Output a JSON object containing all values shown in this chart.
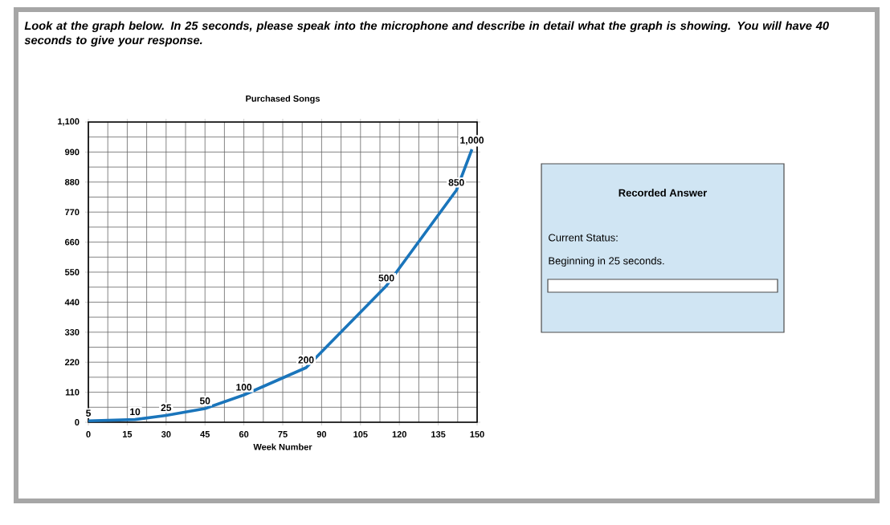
{
  "chart_data": [
    {
      "type": "line",
      "title": "Purchased Songs",
      "xlabel": "Week Number",
      "annotations": [
        "Look at the graph below. In 25 seconds, please speak into the microphone and describe in detail what the graph is showing. You will have 40 seconds to give your response."
      ],
      "x": [
        0,
        18,
        30,
        45,
        60,
        84,
        115,
        142,
        148
      ],
      "series": [
        {
          "color": "#1a75bb",
          "values": [
            5,
            10,
            25,
            50,
            100,
            200,
            500,
            850,
            1000
          ],
          "value_labels": [
            "5",
            "10",
            "25",
            "50",
            "100",
            "200",
            "500",
            "850",
            "1,000"
          ]
        }
      ],
      "xlim": [
        0,
        150
      ],
      "xticks": [
        0,
        15,
        30,
        45,
        60,
        75,
        90,
        105,
        120,
        135,
        150
      ],
      "ylim": [
        0,
        1100
      ],
      "yticks": [
        0,
        110,
        220,
        330,
        440,
        550,
        660,
        770,
        880,
        990,
        {
          "value": 1100,
          "label": "1,100"
        }
      ],
      "grid": true
    },
    {
      "type": "other",
      "title": "Recorded Answer",
      "annotations": [
        "Current Status:",
        "Beginning in 25 seconds."
      ]
    }
  ]
}
